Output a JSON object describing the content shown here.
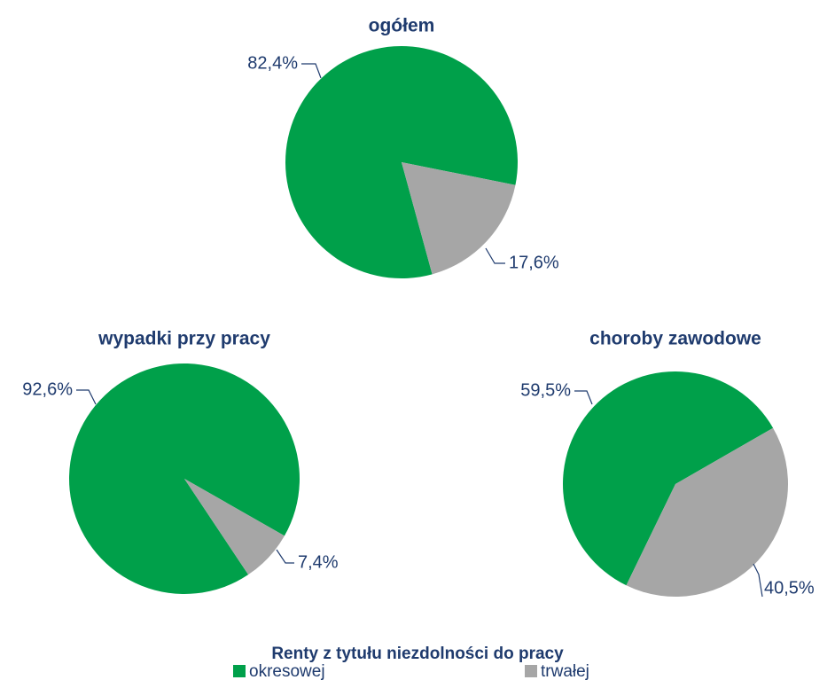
{
  "chart_data": [
    {
      "type": "pie",
      "title": "ogółem",
      "values": [
        82.4,
        17.6
      ],
      "value_labels": [
        "82,4%",
        "17,6%"
      ],
      "colors": [
        "#00a04a",
        "#a6a6a6"
      ]
    },
    {
      "type": "pie",
      "title": "wypadki przy pracy",
      "values": [
        92.6,
        7.4
      ],
      "value_labels": [
        "92,6%",
        "7,4%"
      ],
      "colors": [
        "#00a04a",
        "#a6a6a6"
      ]
    },
    {
      "type": "pie",
      "title": "choroby zawodowe",
      "values": [
        59.5,
        40.5
      ],
      "value_labels": [
        "59,5%",
        "40,5%"
      ],
      "colors": [
        "#00a04a",
        "#a6a6a6"
      ]
    }
  ],
  "legend": {
    "title": "Renty z tytułu niezdolności do pracy",
    "items": [
      "okresowej",
      "trwałej"
    ],
    "colors": [
      "#00a04a",
      "#a6a6a6"
    ]
  }
}
